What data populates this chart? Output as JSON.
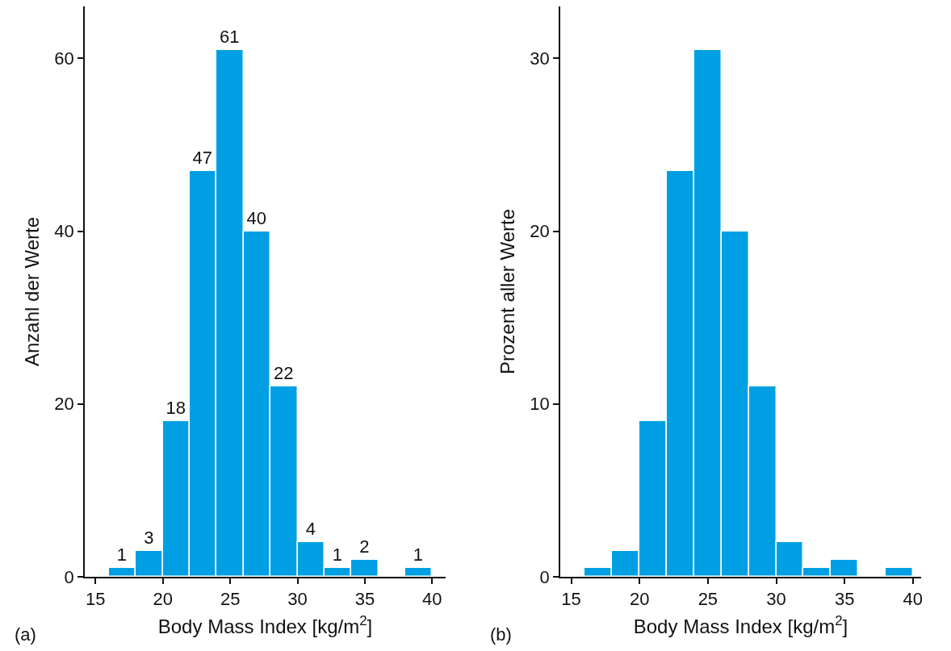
{
  "chart_data": [
    {
      "type": "histogram",
      "xlabel": "Body Mass Index [kg/m$^{2}$]",
      "ylabel": "Anzahl der Werte",
      "bins": [
        16,
        18,
        20,
        22,
        24,
        26,
        28,
        30,
        32,
        34,
        36,
        38,
        40
      ],
      "values": [
        1,
        3,
        18,
        47,
        61,
        40,
        22,
        4,
        1,
        2,
        0,
        1
      ],
      "value_labels": [
        "1",
        "3",
        "18",
        "47",
        "61",
        "40",
        "22",
        "4",
        "1",
        "2",
        null,
        "1"
      ],
      "color": "#009fe3",
      "xlim": [
        14.2,
        41
      ],
      "ylim": [
        0,
        66
      ],
      "xticks": [
        15,
        20,
        25,
        30,
        35,
        40
      ],
      "yticks": [
        0,
        20,
        40,
        60
      ],
      "annotations": [
        "(a)"
      ]
    },
    {
      "type": "histogram",
      "xlabel": "Body Mass Index [kg/m$^{2}$]",
      "ylabel": "Prozent aller Werte",
      "bins": [
        16,
        18,
        20,
        22,
        24,
        26,
        28,
        30,
        32,
        34,
        36,
        38,
        40
      ],
      "values": [
        0.5,
        1.5,
        9,
        23.5,
        30.5,
        20,
        11,
        2,
        0.5,
        1,
        0,
        0.5
      ],
      "color": "#009fe3",
      "xlim": [
        14.2,
        40.6
      ],
      "ylim": [
        0,
        33
      ],
      "xticks": [
        15,
        20,
        25,
        30,
        35,
        40
      ],
      "yticks": [
        0,
        10,
        20,
        30
      ],
      "annotations": [
        "(b)"
      ]
    }
  ]
}
